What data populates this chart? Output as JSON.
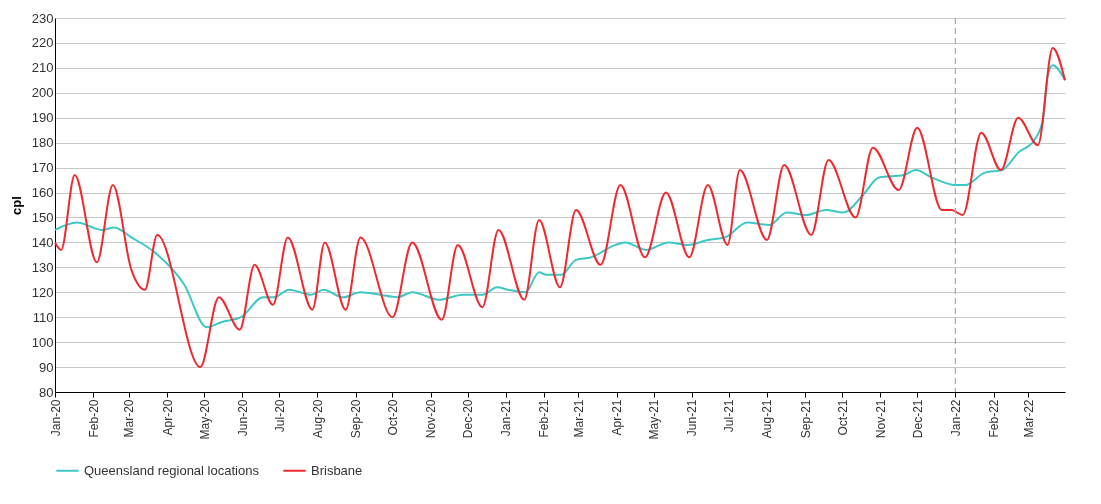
{
  "chart_data": {
    "type": "line",
    "ylabel": "cpl",
    "xlim": [
      "2020-01-01",
      "2022-03-31"
    ],
    "xticks": [
      {
        "value": "2020-01-01",
        "label": "Jan-20"
      },
      {
        "value": "2020-02-01",
        "label": "Feb-20"
      },
      {
        "value": "2020-03-01",
        "label": "Mar-20"
      },
      {
        "value": "2020-04-01",
        "label": "Apr-20"
      },
      {
        "value": "2020-05-01",
        "label": "May-20"
      },
      {
        "value": "2020-06-01",
        "label": "Jun-20"
      },
      {
        "value": "2020-07-01",
        "label": "Jul-20"
      },
      {
        "value": "2020-08-01",
        "label": "Aug-20"
      },
      {
        "value": "2020-09-01",
        "label": "Sep-20"
      },
      {
        "value": "2020-10-01",
        "label": "Oct-20"
      },
      {
        "value": "2020-11-01",
        "label": "Nov-20"
      },
      {
        "value": "2020-12-01",
        "label": "Dec-20"
      },
      {
        "value": "2021-01-01",
        "label": "Jan-21"
      },
      {
        "value": "2021-02-01",
        "label": "Feb-21"
      },
      {
        "value": "2021-03-01",
        "label": "Mar-21"
      },
      {
        "value": "2021-04-01",
        "label": "Apr-21"
      },
      {
        "value": "2021-05-01",
        "label": "May-21"
      },
      {
        "value": "2021-06-01",
        "label": "Jun-21"
      },
      {
        "value": "2021-07-01",
        "label": "Jul-21"
      },
      {
        "value": "2021-08-01",
        "label": "Aug-21"
      },
      {
        "value": "2021-09-01",
        "label": "Sep-21"
      },
      {
        "value": "2021-10-01",
        "label": "Oct-21"
      },
      {
        "value": "2021-11-01",
        "label": "Nov-21"
      },
      {
        "value": "2021-12-01",
        "label": "Dec-21"
      },
      {
        "value": "2022-01-01",
        "label": "Jan-22"
      },
      {
        "value": "2022-02-01",
        "label": "Feb-22"
      },
      {
        "value": "2022-03-01",
        "label": "Mar-22"
      }
    ],
    "ylim": [
      80,
      230
    ],
    "yticks": [
      80,
      90,
      100,
      110,
      120,
      130,
      140,
      150,
      160,
      170,
      180,
      190,
      200,
      210,
      220,
      230
    ],
    "grid": "y",
    "legend": "bottom",
    "marker": "none",
    "line_style": "solid",
    "ref_lines": [
      {
        "axis": "x",
        "value": "2022-01-01",
        "color": "#aaaaaa",
        "line_style": "dashed"
      }
    ],
    "series": [
      {
        "name": "Queensland regional locations",
        "color": "#3cc8c4",
        "x": [
          "2020-01-01",
          "2020-01-19",
          "2020-02-08",
          "2020-02-18",
          "2020-03-03",
          "2020-03-22",
          "2020-04-15",
          "2020-05-03",
          "2020-05-15",
          "2020-05-31",
          "2020-06-18",
          "2020-06-27",
          "2020-07-09",
          "2020-07-27",
          "2020-08-06",
          "2020-08-22",
          "2020-09-05",
          "2020-09-21",
          "2020-10-05",
          "2020-10-17",
          "2020-11-08",
          "2020-11-27",
          "2020-12-13",
          "2020-12-25",
          "2021-01-03",
          "2021-01-17",
          "2021-01-28",
          "2021-02-03",
          "2021-02-15",
          "2021-02-27",
          "2021-03-11",
          "2021-03-31",
          "2021-04-08",
          "2021-04-25",
          "2021-05-13",
          "2021-05-29",
          "2021-06-14",
          "2021-06-28",
          "2021-07-16",
          "2021-08-03",
          "2021-08-17",
          "2021-09-02",
          "2021-09-18",
          "2021-10-02",
          "2021-10-18",
          "2021-10-31",
          "2021-11-20",
          "2021-11-30",
          "2021-12-13",
          "2022-01-01",
          "2022-01-09",
          "2022-01-25",
          "2022-02-08",
          "2022-02-21",
          "2022-03-06",
          "2022-03-13",
          "2022-03-17",
          "2022-03-21",
          "2022-03-31"
        ],
        "values": [
          145,
          148,
          145,
          146,
          142,
          136,
          123,
          106,
          108,
          110,
          118,
          118,
          121,
          119,
          121,
          118,
          120,
          119,
          118,
          120,
          117,
          119,
          119,
          122,
          121,
          120,
          128,
          127,
          127,
          133,
          134,
          139,
          140,
          137,
          140,
          139,
          141,
          142,
          148,
          147,
          152,
          151,
          153,
          152,
          159,
          166,
          167,
          169,
          166,
          163,
          163,
          168,
          169,
          176,
          181,
          189,
          207,
          211,
          205
        ]
      },
      {
        "name": "Brisbane",
        "color": "#ee2a30",
        "x": [
          "2020-01-01",
          "2020-01-06",
          "2020-01-17",
          "2020-02-04",
          "2020-02-17",
          "2020-03-03",
          "2020-03-14",
          "2020-03-24",
          "2020-04-28",
          "2020-05-13",
          "2020-05-30",
          "2020-06-11",
          "2020-06-26",
          "2020-07-08",
          "2020-07-28",
          "2020-08-07",
          "2020-08-24",
          "2020-09-05",
          "2020-10-01",
          "2020-10-17",
          "2020-11-10",
          "2020-11-23",
          "2020-12-13",
          "2020-12-26",
          "2021-01-16",
          "2021-01-28",
          "2021-02-14",
          "2021-02-27",
          "2021-03-19",
          "2021-04-04",
          "2021-04-24",
          "2021-05-11",
          "2021-05-30",
          "2021-06-14",
          "2021-06-30",
          "2021-07-10",
          "2021-08-01",
          "2021-08-15",
          "2021-09-06",
          "2021-09-20",
          "2021-10-12",
          "2021-10-26",
          "2021-11-16",
          "2021-12-01",
          "2021-12-21",
          "2021-12-29",
          "2022-01-07",
          "2022-01-22",
          "2022-02-07",
          "2022-02-21",
          "2022-03-09",
          "2022-03-21",
          "2022-03-31"
        ],
        "values": [
          140,
          137,
          167,
          132,
          163,
          129,
          121,
          143,
          90,
          118,
          105,
          131,
          115,
          142,
          113,
          140,
          113,
          142,
          110,
          140,
          109,
          139,
          114,
          145,
          117,
          149,
          122,
          153,
          131,
          163,
          134,
          160,
          134,
          163,
          139,
          169,
          141,
          171,
          143,
          173,
          150,
          178,
          161,
          186,
          153,
          153,
          151,
          184,
          169,
          190,
          179,
          218,
          205
        ]
      }
    ]
  }
}
